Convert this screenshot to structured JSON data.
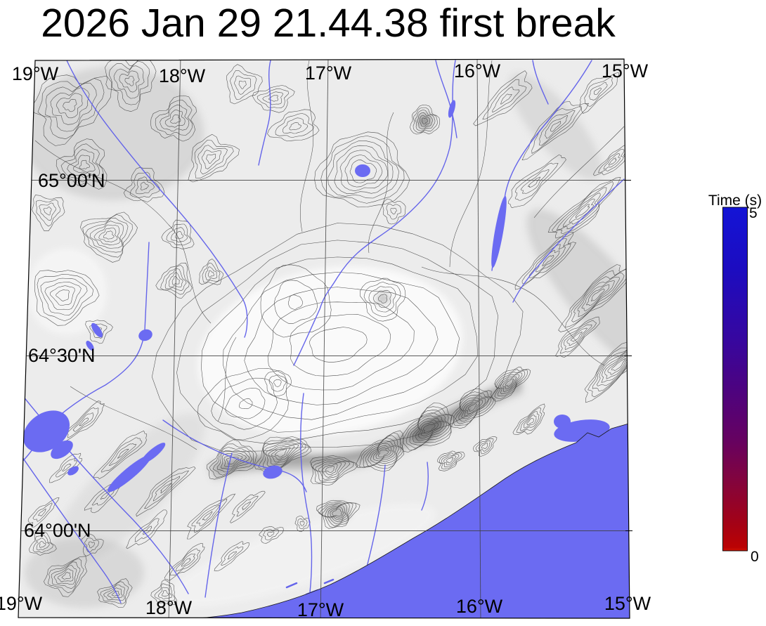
{
  "title": "2026 Jan 29 21.44.38 first break",
  "map": {
    "lon_labels": [
      "19°W",
      "18°W",
      "17°W",
      "16°W",
      "15°W"
    ],
    "lat_labels": [
      "65°00'N",
      "64°30'N",
      "64°00'N"
    ]
  },
  "colorbar": {
    "label": "Time (s)",
    "max": "5",
    "min": "0",
    "top_color": "#1414d6",
    "mid_color": "#4b0382",
    "bottom_color": "#c00000"
  },
  "colors": {
    "ocean": "#6b6bf2",
    "lake": "#6b6bf2",
    "river": "#5d5dea",
    "land": "#ececec",
    "contour": "#3a3a3a"
  }
}
